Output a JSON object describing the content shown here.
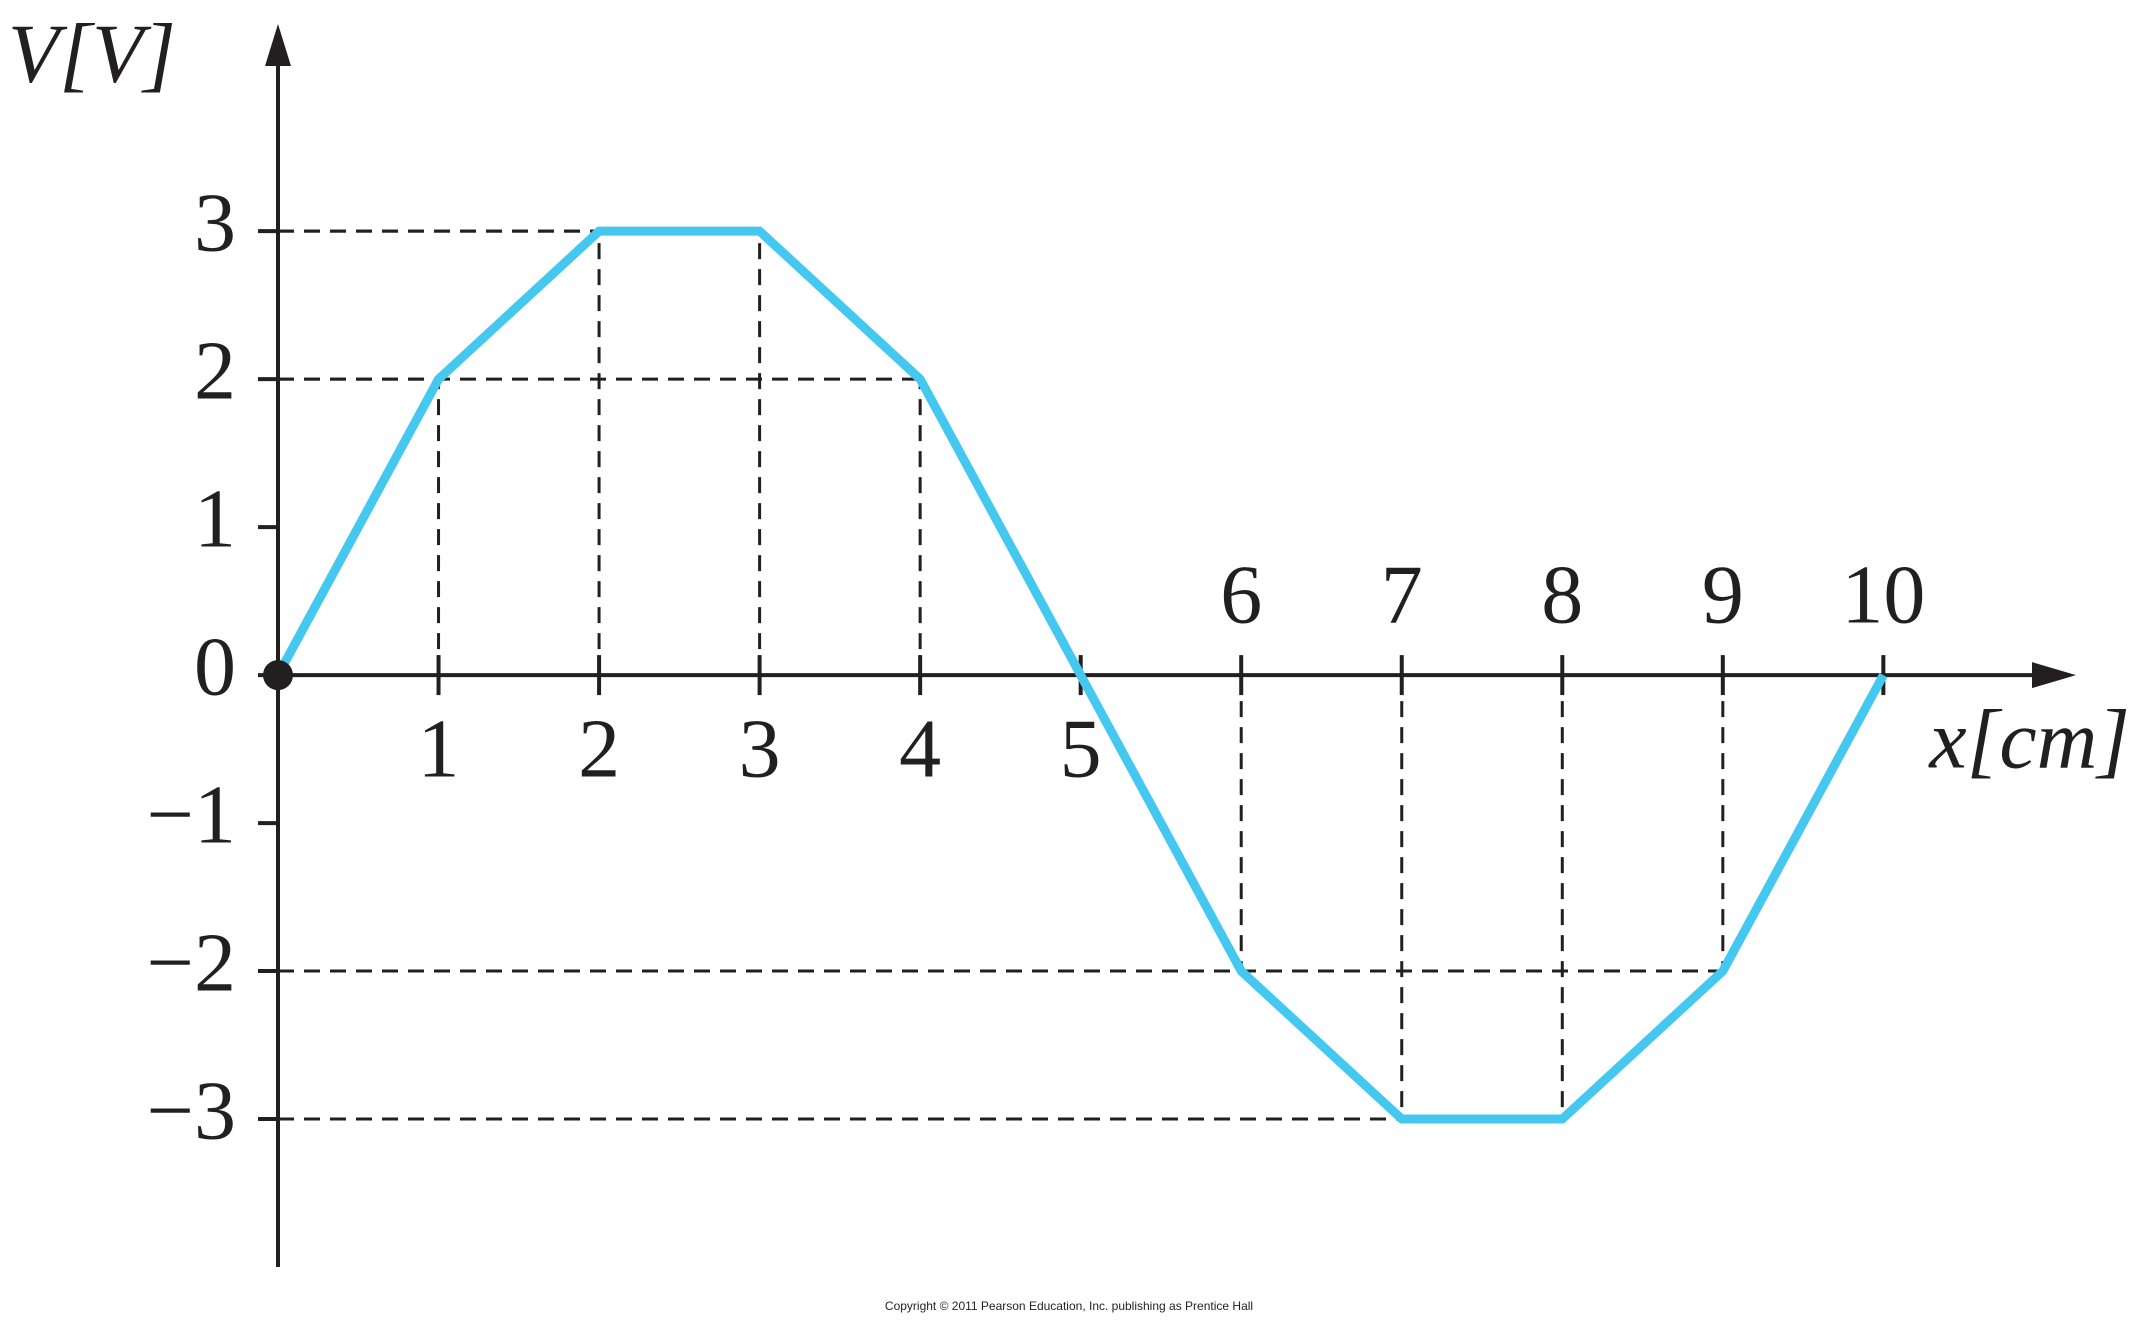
{
  "chart_data": {
    "type": "line",
    "y_label": "V[V]",
    "x_label": "x[cm]",
    "footer": "Copyright © 2011 Pearson Education, Inc. publishing as Prentice Hall",
    "x": [
      0,
      1,
      2,
      3,
      4,
      5,
      6,
      7,
      8,
      9,
      10
    ],
    "series": [
      {
        "color": "#45c8f0",
        "values": [
          0,
          2,
          3,
          3,
          2,
          0,
          -2,
          -3,
          -3,
          -2,
          0
        ]
      }
    ],
    "xlim": [
      0,
      11.2
    ],
    "ylim": [
      -4,
      4.4
    ],
    "xticks": [
      1,
      2,
      3,
      4,
      5,
      6,
      7,
      8,
      9,
      10
    ],
    "yticks": [
      {
        "value": -3,
        "label": "−3"
      },
      {
        "value": -2,
        "label": "−2"
      },
      {
        "value": -1,
        "label": "−1"
      },
      0,
      1,
      2,
      3
    ],
    "guides": true
  }
}
